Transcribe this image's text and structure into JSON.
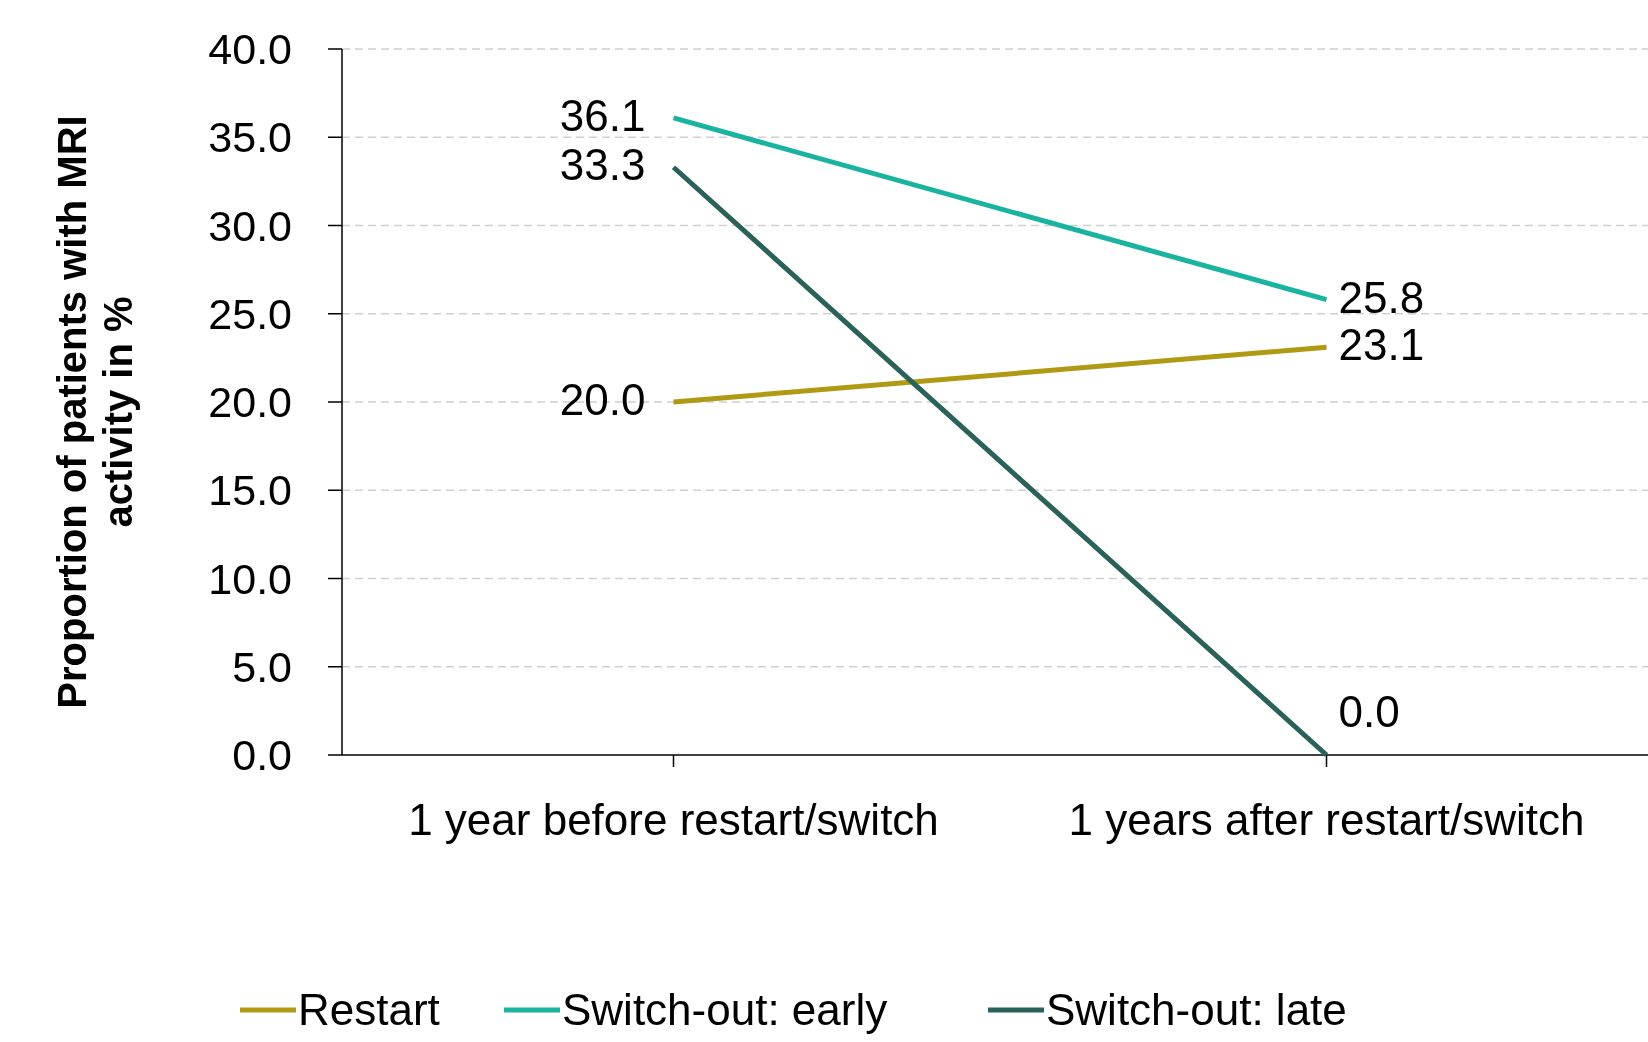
{
  "chart_data": {
    "type": "line",
    "ylabel": "Proportion of patients with MRI activity in %",
    "categories": [
      "1 year before restart/switch",
      "1 years after restart/switch"
    ],
    "series": [
      {
        "name": "Restart",
        "color": "#b09a14",
        "values": [
          20.0,
          23.1
        ],
        "value_labels": [
          "20.0",
          "23.1"
        ]
      },
      {
        "name": "Switch-out: early",
        "color": "#1ab3a0",
        "values": [
          36.1,
          25.8
        ],
        "value_labels": [
          "36.1",
          "25.8"
        ]
      },
      {
        "name": "Switch-out: late",
        "color": "#2a6158",
        "values": [
          33.3,
          0.0
        ],
        "value_labels": [
          "33.3",
          "0.0"
        ]
      }
    ],
    "ylim": [
      0,
      40
    ],
    "yticks": [
      {
        "value": 0,
        "label": "0.0"
      },
      {
        "value": 5,
        "label": "5.0"
      },
      {
        "value": 10,
        "label": "10.0"
      },
      {
        "value": 15,
        "label": "15.0"
      },
      {
        "value": 20,
        "label": "20.0"
      },
      {
        "value": 25,
        "label": "25.0"
      },
      {
        "value": 30,
        "label": "30.0"
      },
      {
        "value": 35,
        "label": "35.0"
      },
      {
        "value": 40,
        "label": "40.0"
      }
    ],
    "grid": "y",
    "legend": "bottom",
    "marker": "none",
    "line_style": "solid"
  }
}
